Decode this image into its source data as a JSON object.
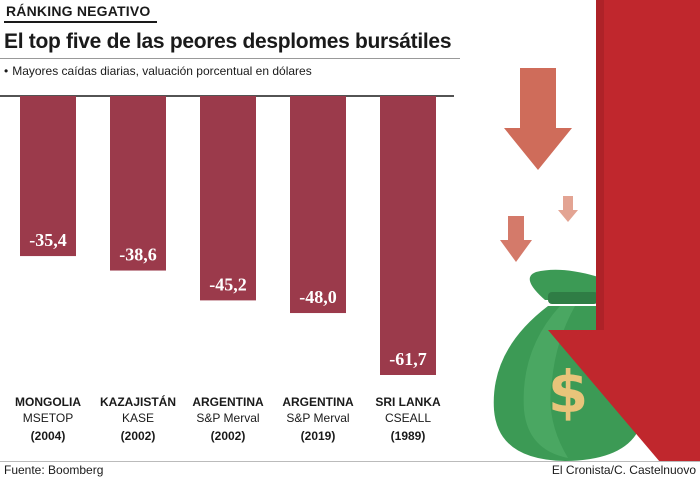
{
  "header": {
    "kicker": "RÁNKING NEGATIVO",
    "title": "El top five de las peores desplomes bursátiles",
    "subtitle": "Mayores caídas diarias, valuación porcentual en dólares"
  },
  "footer": {
    "source": "Fuente: Boomberg",
    "credit": "El Cronista/C. Castelnuovo"
  },
  "colors": {
    "bar": "#9b3a4b",
    "arrow_big": "#c0272d",
    "arrow_small": "#cf6c5a",
    "bag": "#3c9a55"
  },
  "illustration": {
    "icons": [
      "down-arrow-icon",
      "money-bag-icon",
      "dollar-icon"
    ],
    "dollar_symbol": "$"
  },
  "chart_data": {
    "type": "bar",
    "categories": [
      {
        "country": "MONGOLIA",
        "index": "MSETOP",
        "year": "(2004)"
      },
      {
        "country": "KAZAJISTÁN",
        "index": "KASE",
        "year": "(2002)"
      },
      {
        "country": "ARGENTINA",
        "index": "S&P Merval",
        "year": "(2002)"
      },
      {
        "country": "ARGENTINA",
        "index": "S&P Merval",
        "year": "(2019)"
      },
      {
        "country": "SRI LANKA",
        "index": "CSEALL",
        "year": "(1989)"
      }
    ],
    "values": [
      -35.4,
      -38.6,
      -45.2,
      -48.0,
      -61.7
    ],
    "value_labels": [
      "-35,4",
      "-38,6",
      "-45,2",
      "-48,0",
      "-61,7"
    ],
    "ylim": [
      -61.7,
      0
    ],
    "bars_hang_from_top": true
  }
}
